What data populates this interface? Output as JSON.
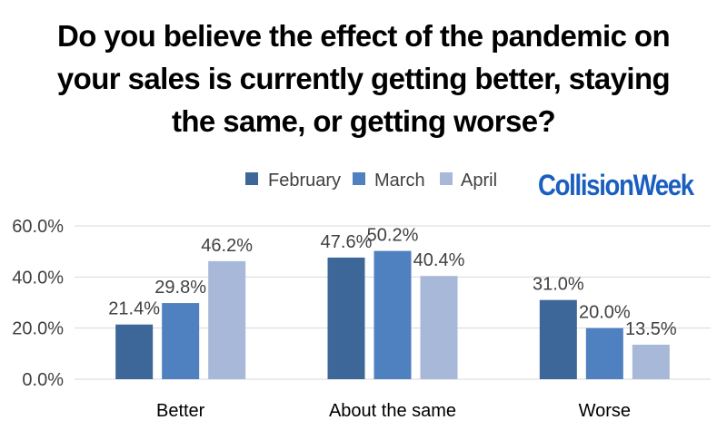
{
  "title_lines": [
    "Do you believe the effect of the pandemic on",
    "your sales is currently getting better, staying",
    "the same, or getting worse?"
  ],
  "logo_text": "CollisionWeek",
  "colors": {
    "February": "#3e6799",
    "March": "#4f80c0",
    "April": "#a7b8d8",
    "logo": "#1a5fc0",
    "grid": "#d9d9d9"
  },
  "chart_data": {
    "type": "bar",
    "title": "Do you believe the effect of the pandemic on your sales is currently getting better, staying the same, or getting worse?",
    "categories": [
      "Better",
      "About the same",
      "Worse"
    ],
    "series": [
      {
        "name": "February",
        "values": [
          21.4,
          47.6,
          31.0
        ]
      },
      {
        "name": "March",
        "values": [
          29.8,
          50.2,
          20.0
        ]
      },
      {
        "name": "April",
        "values": [
          46.2,
          40.4,
          13.5
        ]
      }
    ],
    "ylim": [
      0,
      60
    ],
    "yticks": [
      "0.0%",
      "20.0%",
      "40.0%",
      "60.0%"
    ],
    "ytick_values": [
      0,
      20,
      40,
      60
    ],
    "data_labels": [
      [
        "21.4%",
        "47.6%",
        "31.0%"
      ],
      [
        "29.8%",
        "50.2%",
        "20.0%"
      ],
      [
        "46.2%",
        "40.4%",
        "13.5%"
      ]
    ],
    "grid": true,
    "legend": "top"
  }
}
